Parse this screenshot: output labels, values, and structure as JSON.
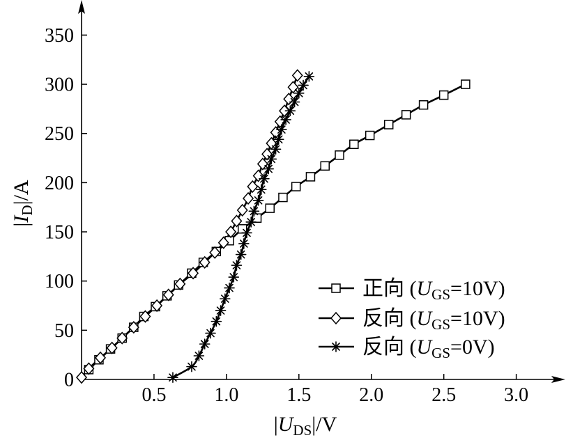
{
  "chart_data": {
    "type": "line",
    "title": "",
    "xlabel": {
      "pre": "|",
      "var": "U",
      "sub": "DS",
      "post": "|/V"
    },
    "ylabel": {
      "pre": "|",
      "var": "I",
      "sub": "D",
      "post": "|/A"
    },
    "xlim": [
      0,
      3.3
    ],
    "ylim": [
      0,
      380
    ],
    "xticks": [
      "0.5",
      "1.0",
      "1.5",
      "2.0",
      "2.5",
      "3.0"
    ],
    "yticks": [
      "0",
      "50",
      "100",
      "150",
      "200",
      "250",
      "300",
      "350"
    ],
    "grid": false,
    "legend_position": "lower-right",
    "line_color": "#000000",
    "series": [
      {
        "label": {
          "pre": "正向 (",
          "var": "U",
          "sub": "GS",
          "post": "=10V)"
        },
        "marker": "square",
        "x": [
          0.05,
          0.12,
          0.2,
          0.28,
          0.36,
          0.43,
          0.51,
          0.59,
          0.67,
          0.76,
          0.84,
          0.93,
          1.02,
          1.11,
          1.21,
          1.3,
          1.39,
          1.48,
          1.58,
          1.68,
          1.78,
          1.88,
          1.99,
          2.12,
          2.24,
          2.36,
          2.5,
          2.65
        ],
        "y": [
          10,
          20,
          31,
          42,
          53,
          64,
          74,
          85,
          96,
          108,
          119,
          130,
          141,
          153,
          164,
          174,
          185,
          196,
          206,
          217,
          228,
          239,
          248,
          259,
          269,
          279,
          289,
          300
        ]
      },
      {
        "label": {
          "pre": "反向 (",
          "var": "U",
          "sub": "GS",
          "post": "=10V)"
        },
        "marker": "diamond",
        "x": [
          0.0,
          0.05,
          0.13,
          0.21,
          0.28,
          0.36,
          0.44,
          0.52,
          0.6,
          0.68,
          0.77,
          0.85,
          0.92,
          0.98,
          1.03,
          1.07,
          1.11,
          1.15,
          1.18,
          1.22,
          1.25,
          1.28,
          1.31,
          1.34,
          1.37,
          1.4,
          1.43,
          1.46,
          1.49
        ],
        "y": [
          2,
          11,
          22,
          32,
          42,
          53,
          64,
          75,
          86,
          97,
          108,
          119,
          129,
          139,
          150,
          161,
          172,
          184,
          196,
          207,
          219,
          229,
          240,
          251,
          262,
          273,
          285,
          297,
          309
        ]
      },
      {
        "label": {
          "pre": "反向 (",
          "var": "U",
          "sub": "GS",
          "post": "=0V)"
        },
        "marker": "star",
        "x": [
          0.63,
          0.76,
          0.81,
          0.85,
          0.89,
          0.93,
          0.96,
          0.99,
          1.02,
          1.05,
          1.07,
          1.1,
          1.12,
          1.14,
          1.17,
          1.19,
          1.22,
          1.24,
          1.26,
          1.29,
          1.31,
          1.34,
          1.36,
          1.38,
          1.41,
          1.44,
          1.47,
          1.5,
          1.53,
          1.57
        ],
        "y": [
          2,
          13,
          24,
          36,
          47,
          59,
          70,
          82,
          93,
          104,
          116,
          127,
          138,
          149,
          160,
          171,
          182,
          193,
          204,
          214,
          224,
          234,
          244,
          254,
          264,
          273,
          282,
          291,
          299,
          308
        ]
      }
    ]
  }
}
